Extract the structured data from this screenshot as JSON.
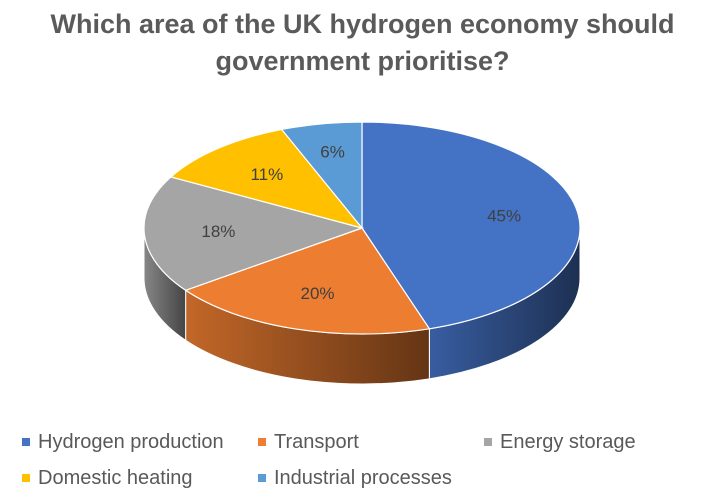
{
  "chart_data": {
    "type": "pie",
    "title_lines": [
      "Which area of the UK hydrogen economy should",
      "government prioritise?"
    ],
    "series": [
      {
        "name": "Hydrogen production",
        "value": 45,
        "label": "45%",
        "color": "#4472c4"
      },
      {
        "name": "Transport",
        "value": 20,
        "label": "20%",
        "color": "#ed7d31"
      },
      {
        "name": "Energy storage",
        "value": 18,
        "label": "18%",
        "color": "#a5a5a5"
      },
      {
        "name": "Domestic heating",
        "value": 11,
        "label": "11%",
        "color": "#ffc000"
      },
      {
        "name": "Industrial processes",
        "value": 6,
        "label": "6%",
        "color": "#5b9bd5"
      }
    ],
    "style": "3d",
    "legend_position": "bottom"
  }
}
